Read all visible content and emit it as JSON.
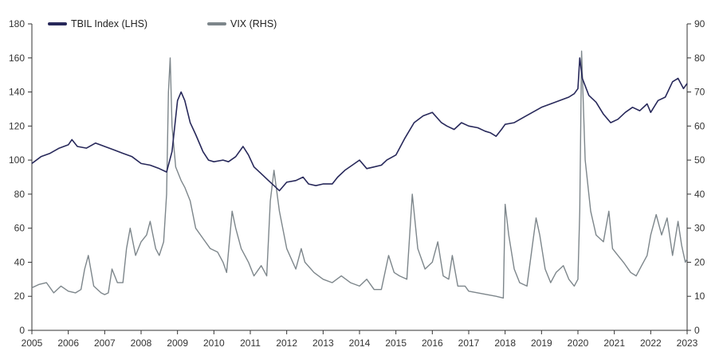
{
  "chart_data": {
    "type": "line",
    "title": "",
    "xlabel": "",
    "ylabel_left": "",
    "ylabel_right": "",
    "grid": false,
    "legend_position": "top-left",
    "x_ticks": [
      "2005",
      "2006",
      "2007",
      "2008",
      "2009",
      "2010",
      "2011",
      "2012",
      "2013",
      "2014",
      "2015",
      "2016",
      "2017",
      "2018",
      "2019",
      "2020",
      "2021",
      "2022",
      "2023"
    ],
    "y_left_ticks": [
      0,
      20,
      40,
      60,
      80,
      100,
      120,
      140,
      160,
      180
    ],
    "y_right_ticks": [
      0,
      10,
      20,
      30,
      40,
      50,
      60,
      70,
      80,
      90
    ],
    "ylim_left": [
      0,
      180
    ],
    "ylim_right": [
      0,
      90
    ],
    "xlim": [
      2005,
      2023
    ],
    "series": [
      {
        "name": "TBIL Index (LHS)",
        "axis": "left",
        "color": "#27285a",
        "points": [
          [
            2005.0,
            98
          ],
          [
            2005.25,
            102
          ],
          [
            2005.5,
            104
          ],
          [
            2005.75,
            107
          ],
          [
            2006.0,
            109
          ],
          [
            2006.1,
            112
          ],
          [
            2006.25,
            108
          ],
          [
            2006.5,
            107
          ],
          [
            2006.75,
            110
          ],
          [
            2007.0,
            108
          ],
          [
            2007.25,
            106
          ],
          [
            2007.5,
            104
          ],
          [
            2007.75,
            102
          ],
          [
            2008.0,
            98
          ],
          [
            2008.25,
            97
          ],
          [
            2008.5,
            95
          ],
          [
            2008.7,
            93
          ],
          [
            2008.85,
            105
          ],
          [
            2008.95,
            125
          ],
          [
            2009.0,
            135
          ],
          [
            2009.1,
            140
          ],
          [
            2009.2,
            135
          ],
          [
            2009.35,
            122
          ],
          [
            2009.5,
            115
          ],
          [
            2009.7,
            105
          ],
          [
            2009.85,
            100
          ],
          [
            2010.0,
            99
          ],
          [
            2010.25,
            100
          ],
          [
            2010.4,
            99
          ],
          [
            2010.6,
            102
          ],
          [
            2010.8,
            108
          ],
          [
            2010.95,
            103
          ],
          [
            2011.1,
            96
          ],
          [
            2011.3,
            92
          ],
          [
            2011.5,
            88
          ],
          [
            2011.65,
            85
          ],
          [
            2011.8,
            82
          ],
          [
            2012.0,
            87
          ],
          [
            2012.25,
            88
          ],
          [
            2012.45,
            90
          ],
          [
            2012.6,
            86
          ],
          [
            2012.8,
            85
          ],
          [
            2013.0,
            86
          ],
          [
            2013.25,
            86
          ],
          [
            2013.4,
            90
          ],
          [
            2013.6,
            94
          ],
          [
            2013.8,
            97
          ],
          [
            2014.0,
            100
          ],
          [
            2014.2,
            95
          ],
          [
            2014.4,
            96
          ],
          [
            2014.6,
            97
          ],
          [
            2014.75,
            100
          ],
          [
            2015.0,
            103
          ],
          [
            2015.25,
            113
          ],
          [
            2015.5,
            122
          ],
          [
            2015.75,
            126
          ],
          [
            2016.0,
            128
          ],
          [
            2016.25,
            122
          ],
          [
            2016.4,
            120
          ],
          [
            2016.6,
            118
          ],
          [
            2016.8,
            122
          ],
          [
            2017.0,
            120
          ],
          [
            2017.25,
            119
          ],
          [
            2017.45,
            117
          ],
          [
            2017.6,
            116
          ],
          [
            2017.75,
            114
          ],
          [
            2017.9,
            118
          ],
          [
            2018.0,
            121
          ],
          [
            2018.25,
            122
          ],
          [
            2018.5,
            125
          ],
          [
            2018.75,
            128
          ],
          [
            2019.0,
            131
          ],
          [
            2019.25,
            133
          ],
          [
            2019.5,
            135
          ],
          [
            2019.75,
            137
          ],
          [
            2019.9,
            139
          ],
          [
            2020.0,
            142
          ],
          [
            2020.05,
            160
          ],
          [
            2020.12,
            148
          ],
          [
            2020.3,
            138
          ],
          [
            2020.5,
            134
          ],
          [
            2020.7,
            127
          ],
          [
            2020.9,
            122
          ],
          [
            2021.1,
            124
          ],
          [
            2021.3,
            128
          ],
          [
            2021.5,
            131
          ],
          [
            2021.7,
            129
          ],
          [
            2021.9,
            133
          ],
          [
            2022.0,
            128
          ],
          [
            2022.2,
            135
          ],
          [
            2022.4,
            137
          ],
          [
            2022.6,
            146
          ],
          [
            2022.75,
            148
          ],
          [
            2022.9,
            142
          ],
          [
            2023.0,
            145
          ]
        ]
      },
      {
        "name": "VIX (RHS)",
        "axis": "right",
        "color": "#7d868b",
        "points": [
          [
            2005.0,
            12.5
          ],
          [
            2005.2,
            13.5
          ],
          [
            2005.4,
            14
          ],
          [
            2005.6,
            11
          ],
          [
            2005.8,
            13
          ],
          [
            2006.0,
            11.5
          ],
          [
            2006.2,
            11
          ],
          [
            2006.35,
            12
          ],
          [
            2006.45,
            18
          ],
          [
            2006.55,
            22
          ],
          [
            2006.7,
            13
          ],
          [
            2006.9,
            11
          ],
          [
            2007.0,
            10.5
          ],
          [
            2007.1,
            11
          ],
          [
            2007.2,
            18
          ],
          [
            2007.35,
            14
          ],
          [
            2007.5,
            14
          ],
          [
            2007.6,
            24
          ],
          [
            2007.7,
            30
          ],
          [
            2007.85,
            22
          ],
          [
            2008.0,
            26
          ],
          [
            2008.15,
            28
          ],
          [
            2008.25,
            32
          ],
          [
            2008.4,
            24
          ],
          [
            2008.5,
            22
          ],
          [
            2008.62,
            26
          ],
          [
            2008.7,
            40
          ],
          [
            2008.75,
            70
          ],
          [
            2008.8,
            80
          ],
          [
            2008.85,
            60
          ],
          [
            2008.95,
            48
          ],
          [
            2009.1,
            44
          ],
          [
            2009.2,
            42
          ],
          [
            2009.35,
            38
          ],
          [
            2009.5,
            30
          ],
          [
            2009.7,
            27
          ],
          [
            2009.9,
            24
          ],
          [
            2010.1,
            23
          ],
          [
            2010.25,
            20
          ],
          [
            2010.35,
            17
          ],
          [
            2010.5,
            35
          ],
          [
            2010.6,
            30
          ],
          [
            2010.75,
            24
          ],
          [
            2010.95,
            20
          ],
          [
            2011.1,
            16
          ],
          [
            2011.3,
            19
          ],
          [
            2011.45,
            16
          ],
          [
            2011.55,
            38
          ],
          [
            2011.65,
            47
          ],
          [
            2011.8,
            35
          ],
          [
            2012.0,
            24
          ],
          [
            2012.25,
            18
          ],
          [
            2012.4,
            24
          ],
          [
            2012.5,
            20
          ],
          [
            2012.75,
            17
          ],
          [
            2013.0,
            15
          ],
          [
            2013.25,
            14
          ],
          [
            2013.5,
            16
          ],
          [
            2013.75,
            14
          ],
          [
            2014.0,
            13
          ],
          [
            2014.2,
            15
          ],
          [
            2014.4,
            12
          ],
          [
            2014.6,
            12
          ],
          [
            2014.8,
            22
          ],
          [
            2014.95,
            17
          ],
          [
            2015.1,
            16
          ],
          [
            2015.3,
            15
          ],
          [
            2015.45,
            40
          ],
          [
            2015.6,
            24
          ],
          [
            2015.8,
            18
          ],
          [
            2016.0,
            20
          ],
          [
            2016.15,
            26
          ],
          [
            2016.3,
            16
          ],
          [
            2016.45,
            15
          ],
          [
            2016.55,
            22
          ],
          [
            2016.7,
            13
          ],
          [
            2016.9,
            13
          ],
          [
            2017.0,
            11.5
          ],
          [
            2017.25,
            11
          ],
          [
            2017.5,
            10.5
          ],
          [
            2017.75,
            10
          ],
          [
            2017.95,
            9.5
          ],
          [
            2018.0,
            37
          ],
          [
            2018.1,
            28
          ],
          [
            2018.25,
            18
          ],
          [
            2018.4,
            14
          ],
          [
            2018.6,
            13
          ],
          [
            2018.75,
            25
          ],
          [
            2018.85,
            33
          ],
          [
            2018.95,
            28
          ],
          [
            2019.1,
            18
          ],
          [
            2019.25,
            14
          ],
          [
            2019.4,
            17
          ],
          [
            2019.6,
            19
          ],
          [
            2019.75,
            15
          ],
          [
            2019.9,
            13
          ],
          [
            2020.0,
            15
          ],
          [
            2020.05,
            35
          ],
          [
            2020.1,
            82
          ],
          [
            2020.2,
            50
          ],
          [
            2020.35,
            35
          ],
          [
            2020.5,
            28
          ],
          [
            2020.7,
            26
          ],
          [
            2020.85,
            35
          ],
          [
            2020.95,
            24
          ],
          [
            2021.1,
            22
          ],
          [
            2021.25,
            20
          ],
          [
            2021.45,
            17
          ],
          [
            2021.6,
            16
          ],
          [
            2021.75,
            19
          ],
          [
            2021.9,
            22
          ],
          [
            2022.0,
            28
          ],
          [
            2022.15,
            34
          ],
          [
            2022.3,
            28
          ],
          [
            2022.45,
            33
          ],
          [
            2022.6,
            22
          ],
          [
            2022.75,
            32
          ],
          [
            2022.85,
            25
          ],
          [
            2022.95,
            20
          ],
          [
            2023.0,
            21
          ]
        ]
      }
    ]
  }
}
